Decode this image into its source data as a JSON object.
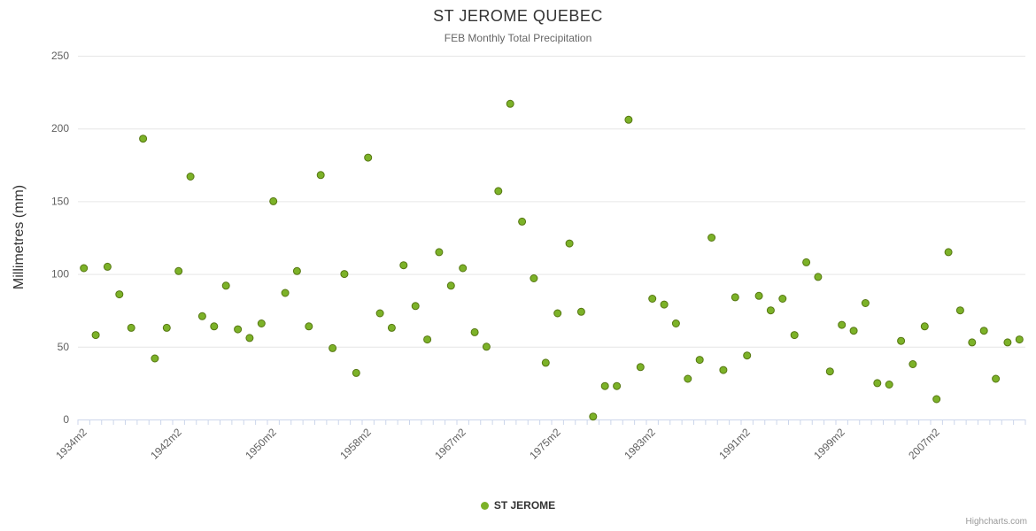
{
  "chart_data": {
    "type": "scatter",
    "title": "ST JEROME QUEBEC",
    "subtitle": "FEB Monthly Total Precipitation",
    "xlabel": "",
    "ylabel": "Millimetres (mm)",
    "ylim": [
      0,
      250
    ],
    "y_ticks": [
      0,
      50,
      100,
      150,
      200,
      250
    ],
    "x_tick_labels": [
      "1934m2",
      "1942m2",
      "1950m2",
      "1958m2",
      "1967m2",
      "1975m2",
      "1983m2",
      "1991m2",
      "1999m2",
      "2007m2"
    ],
    "x_label_every": 8,
    "grid": true,
    "legend_position": "bottom",
    "colors": {
      "grid_line": "#e6e6e6",
      "axis_line": "#ccd6eb",
      "axis_label": "#606060",
      "marker_fill": "#7cb228",
      "marker_stroke": "#567712"
    },
    "series": [
      {
        "name": "ST JEROME",
        "color": "#7cb228",
        "categories": [
          "1934m2",
          "1935m2",
          "1936m2",
          "1937m2",
          "1938m2",
          "1939m2",
          "1940m2",
          "1941m2",
          "1942m2",
          "1943m2",
          "1944m2",
          "1945m2",
          "1946m2",
          "1947m2",
          "1948m2",
          "1949m2",
          "1950m2",
          "1951m2",
          "1952m2",
          "1953m2",
          "1954m2",
          "1955m2",
          "1956m2",
          "1957m2",
          "1958m2",
          "1959m2",
          "1960m2",
          "1962m2",
          "1963m2",
          "1964m2",
          "1965m2",
          "1966m2",
          "1967m2",
          "1968m2",
          "1969m2",
          "1970m2",
          "1971m2",
          "1972m2",
          "1973m2",
          "1974m2",
          "1975m2",
          "1976m2",
          "1977m2",
          "1978m2",
          "1979m2",
          "1980m2",
          "1981m2",
          "1982m2",
          "1983m2",
          "1984m2",
          "1985m2",
          "1986m2",
          "1987m2",
          "1988m2",
          "1989m2",
          "1990m2",
          "1991m2",
          "1992m2",
          "1993m2",
          "1994m2",
          "1995m2",
          "1996m2",
          "1997m2",
          "1998m2",
          "1999m2",
          "2000m2",
          "2001m2",
          "2002m2",
          "2003m2",
          "2004m2",
          "2005m2",
          "2006m2",
          "2007m2",
          "2008m2",
          "2009m2",
          "2010m2",
          "2011m2",
          "2012m2",
          "2013m2",
          "2014m2"
        ],
        "values": [
          104,
          58,
          105,
          86,
          63,
          193,
          42,
          63,
          102,
          167,
          71,
          64,
          92,
          62,
          56,
          66,
          150,
          87,
          102,
          64,
          168,
          49,
          100,
          32,
          180,
          73,
          63,
          106,
          78,
          55,
          115,
          92,
          104,
          60,
          50,
          157,
          217,
          136,
          97,
          39,
          73,
          121,
          74,
          2,
          23,
          23,
          206,
          36,
          83,
          79,
          66,
          28,
          41,
          125,
          34,
          84,
          44,
          85,
          75,
          83,
          58,
          108,
          98,
          33,
          65,
          61,
          80,
          25,
          24,
          54,
          38,
          64,
          14,
          115,
          75,
          53,
          61,
          28,
          53,
          55
        ]
      }
    ]
  },
  "credits": {
    "label": "Highcharts.com"
  }
}
